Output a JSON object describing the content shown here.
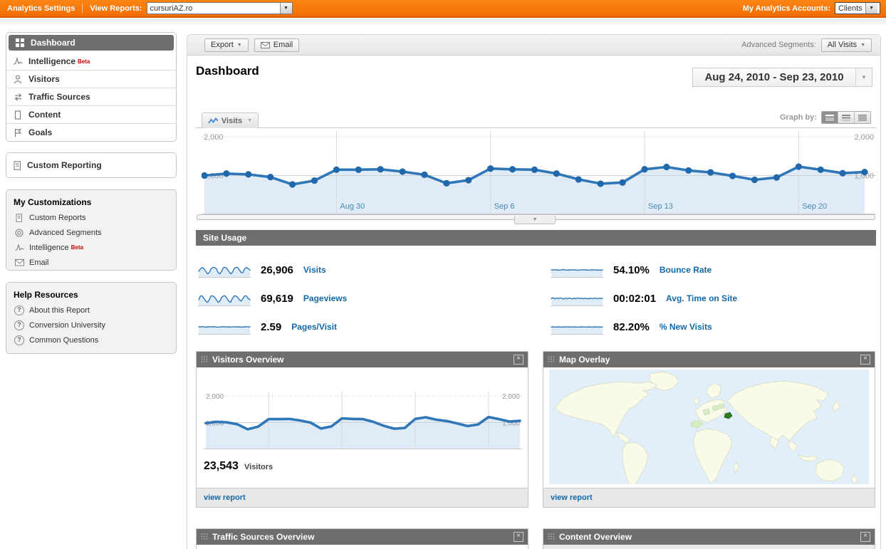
{
  "topbar": {
    "brand": "Analytics Settings",
    "view_reports_label": "View Reports:",
    "view_reports_value": "cursuriAZ.ro",
    "accounts_label": "My Analytics Accounts:",
    "accounts_value": "Clients"
  },
  "sidebar": {
    "nav": [
      {
        "label": "Dashboard"
      },
      {
        "label": "Intelligence",
        "badge": "Beta"
      },
      {
        "label": "Visitors"
      },
      {
        "label": "Traffic Sources"
      },
      {
        "label": "Content"
      },
      {
        "label": "Goals"
      }
    ],
    "custom_reporting_label": "Custom Reporting",
    "my_customizations": {
      "title": "My Customizations",
      "items": [
        {
          "label": "Custom Reports"
        },
        {
          "label": "Advanced Segments"
        },
        {
          "label": "Intelligence",
          "badge": "Beta"
        },
        {
          "label": "Email"
        }
      ]
    },
    "help": {
      "title": "Help Resources",
      "items": [
        {
          "label": "About this Report"
        },
        {
          "label": "Conversion University"
        },
        {
          "label": "Common Questions"
        }
      ]
    }
  },
  "toolbar": {
    "export": "Export",
    "email": "Email",
    "segments_label": "Advanced Segments:",
    "segments_value": "All Visits"
  },
  "page": {
    "title": "Dashboard",
    "date_range": "Aug 24, 2010 - Sep 23, 2010"
  },
  "chart_controls": {
    "metric_tab": "Visits",
    "graph_by": "Graph by:"
  },
  "site_usage": {
    "header": "Site Usage",
    "left": [
      {
        "value": "26,906",
        "label": "Visits"
      },
      {
        "value": "69,619",
        "label": "Pageviews"
      },
      {
        "value": "2.59",
        "label": "Pages/Visit"
      }
    ],
    "right": [
      {
        "value": "54.10%",
        "label": "Bounce Rate"
      },
      {
        "value": "00:02:01",
        "label": "Avg. Time on Site"
      },
      {
        "value": "82.20%",
        "label": "% New Visits"
      }
    ]
  },
  "panels": {
    "visitors": {
      "title": "Visitors Overview",
      "stat_value": "23,543",
      "stat_label": "Visitors",
      "link": "view report"
    },
    "map": {
      "title": "Map Overlay",
      "link": "view report"
    },
    "traffic": {
      "title": "Traffic Sources Overview"
    },
    "content": {
      "title": "Content Overview"
    }
  },
  "colors": {
    "topbar_orange": "#F8790B",
    "header_gray": "#6E6E6E",
    "link_blue": "#1569A8",
    "chart_line": "#3077B8",
    "chart_dot": "#1F68AC",
    "chart_area": "#DFECF7",
    "axis_label": "#999999",
    "xtick_blue": "#4A87B0",
    "beta_red": "#CC0000",
    "map_ocean": "#E1EFFA",
    "map_land": "#FAFAE8",
    "map_highlight_country": "#2F7A1C",
    "map_light_green": "#D7ECC3"
  },
  "chart_data": [
    {
      "id": "main-visits",
      "type": "area",
      "title": "Visits",
      "x": [
        "Aug 24",
        "Aug 25",
        "Aug 26",
        "Aug 27",
        "Aug 28",
        "Aug 29",
        "Aug 30",
        "Aug 31",
        "Sep 1",
        "Sep 2",
        "Sep 3",
        "Sep 4",
        "Sep 5",
        "Sep 6",
        "Sep 7",
        "Sep 8",
        "Sep 9",
        "Sep 10",
        "Sep 11",
        "Sep 12",
        "Sep 13",
        "Sep 14",
        "Sep 15",
        "Sep 16",
        "Sep 17",
        "Sep 18",
        "Sep 19",
        "Sep 20",
        "Sep 21",
        "Sep 22",
        "Sep 23"
      ],
      "values": [
        1000,
        1050,
        1030,
        960,
        770,
        870,
        1150,
        1150,
        1160,
        1100,
        1020,
        800,
        880,
        1180,
        1160,
        1150,
        1050,
        900,
        790,
        820,
        1160,
        1220,
        1130,
        1080,
        990,
        890,
        950,
        1230,
        1150,
        1060,
        1090
      ],
      "ylim": [
        0,
        2000
      ],
      "yticks": [
        {
          "value": 2000,
          "label": "2,000",
          "dotted": true
        },
        {
          "value": 1000,
          "label": "1,000"
        }
      ],
      "xticks": [
        {
          "index": 6,
          "label": "Aug 30"
        },
        {
          "index": 13,
          "label": "Sep 6"
        },
        {
          "index": 20,
          "label": "Sep 13"
        },
        {
          "index": 27,
          "label": "Sep 20"
        }
      ],
      "grid": true,
      "legend": "none"
    },
    {
      "id": "visitors-overview",
      "type": "area",
      "title": "Visitors",
      "x": [
        "Aug 24",
        "Aug 25",
        "Aug 26",
        "Aug 27",
        "Aug 28",
        "Aug 29",
        "Aug 30",
        "Aug 31",
        "Sep 1",
        "Sep 2",
        "Sep 3",
        "Sep 4",
        "Sep 5",
        "Sep 6",
        "Sep 7",
        "Sep 8",
        "Sep 9",
        "Sep 10",
        "Sep 11",
        "Sep 12",
        "Sep 13",
        "Sep 14",
        "Sep 15",
        "Sep 16",
        "Sep 17",
        "Sep 18",
        "Sep 19",
        "Sep 20",
        "Sep 21",
        "Sep 22",
        "Sep 23"
      ],
      "values": [
        980,
        1030,
        1010,
        940,
        750,
        850,
        1130,
        1130,
        1140,
        1080,
        1000,
        780,
        860,
        1160,
        1140,
        1130,
        1030,
        880,
        770,
        800,
        1140,
        1200,
        1110,
        1060,
        970,
        870,
        930,
        1210,
        1130,
        1040,
        1070
      ],
      "ylim": [
        0,
        2000
      ],
      "yticks": [
        {
          "value": 2000,
          "label": "2,000",
          "dotted": true
        },
        {
          "value": 1000,
          "label": "1,000"
        }
      ],
      "xticks": [
        {
          "index": 6
        },
        {
          "index": 13
        },
        {
          "index": 20
        },
        {
          "index": 27
        }
      ],
      "grid": true,
      "legend": "none"
    },
    {
      "id": "spark-visits",
      "type": "sparkline",
      "title": "Visits sparkline",
      "ylim": [
        0,
        10
      ],
      "values": [
        5,
        7,
        8,
        7,
        5,
        3,
        4,
        7,
        8,
        8,
        7,
        4,
        3,
        5,
        8,
        8,
        7,
        5,
        3,
        4,
        7,
        8,
        8,
        6,
        4,
        4,
        7,
        8,
        7,
        6
      ]
    },
    {
      "id": "spark-pageviews",
      "type": "sparkline",
      "title": "Pageviews sparkline",
      "ylim": [
        0,
        10
      ],
      "values": [
        5,
        8,
        8,
        6,
        4,
        3,
        5,
        8,
        8,
        7,
        5,
        3,
        4,
        7,
        8,
        8,
        6,
        4,
        3,
        6,
        8,
        8,
        7,
        5,
        4,
        6,
        8,
        8,
        6,
        5
      ]
    },
    {
      "id": "spark-pages-visit",
      "type": "sparkline",
      "title": "Pages/Visit sparkline",
      "ylim": [
        0,
        10
      ],
      "values": [
        6.2,
        6.1,
        6.3,
        6.0,
        5.9,
        6.1,
        6.2,
        6.0,
        6.1,
        6.2,
        6.0,
        5.8,
        6.0,
        6.1,
        6.2,
        6.1,
        6.0,
        6.1,
        5.9,
        6.0,
        6.2,
        6.1,
        6.0,
        6.1,
        6.0,
        5.9,
        6.1,
        6.2,
        6.0,
        6.1
      ]
    },
    {
      "id": "spark-bounce",
      "type": "sparkline",
      "title": "Bounce Rate sparkline",
      "ylim": [
        0,
        10
      ],
      "values": [
        6.1,
        6.0,
        6.2,
        6.1,
        5.9,
        6.0,
        6.1,
        6.3,
        6.0,
        5.9,
        6.1,
        6.0,
        6.2,
        6.1,
        6.0,
        5.8,
        6.0,
        6.1,
        6.2,
        6.0,
        6.1,
        5.9,
        6.0,
        6.2,
        6.1,
        6.0,
        6.1,
        6.0,
        5.9,
        6.1
      ]
    },
    {
      "id": "spark-avg-time",
      "type": "sparkline",
      "title": "Avg. Time on Site sparkline",
      "ylim": [
        0,
        10
      ],
      "values": [
        6.0,
        6.6,
        5.7,
        6.4,
        5.9,
        6.5,
        6.1,
        5.6,
        6.3,
        5.8,
        6.4,
        6.0,
        5.7,
        6.2,
        5.8,
        6.5,
        5.9,
        6.3,
        5.8,
        6.2,
        6.0,
        5.7,
        6.3,
        5.9,
        6.1,
        6.4,
        5.8,
        6.2,
        6.0,
        6.1
      ]
    },
    {
      "id": "spark-new-visits",
      "type": "sparkline",
      "title": "% New Visits sparkline",
      "ylim": [
        0,
        10
      ],
      "values": [
        6.0,
        6.1,
        5.9,
        6.0,
        6.1,
        6.0,
        5.9,
        6.1,
        6.0,
        6.0,
        6.1,
        5.9,
        6.0,
        6.1,
        6.0,
        5.9,
        6.0,
        6.1,
        6.0,
        6.0,
        5.9,
        6.1,
        6.0,
        5.9,
        6.0,
        6.1,
        6.0,
        6.0,
        5.9,
        6.0
      ]
    }
  ]
}
